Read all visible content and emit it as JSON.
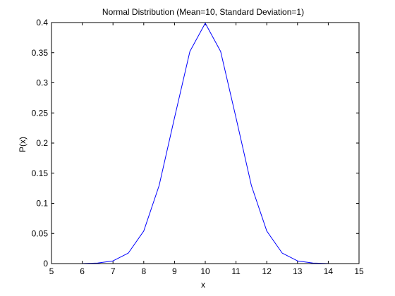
{
  "chart_data": {
    "type": "line",
    "title": "Normal Distribution (Mean=10, Standard Deviation=1)",
    "xlabel": "x",
    "ylabel": "P(x)",
    "xlim": [
      5,
      15
    ],
    "ylim": [
      0,
      0.4
    ],
    "xticks": [
      "5",
      "6",
      "7",
      "8",
      "9",
      "10",
      "11",
      "12",
      "13",
      "14",
      "15"
    ],
    "yticks": [
      "0",
      "0.05",
      "0.1",
      "0.15",
      "0.2",
      "0.25",
      "0.3",
      "0.35",
      "0.4"
    ],
    "grid": false,
    "series": [
      {
        "color": "#0000ff",
        "x": [
          5,
          5.5,
          6,
          6.5,
          7,
          7.5,
          8,
          8.5,
          9,
          9.5,
          10,
          10.5,
          11,
          11.5,
          12,
          12.5,
          13,
          13.5,
          14,
          14.5,
          15
        ],
        "y": [
          1.5e-06,
          1.6e-05,
          0.0001338,
          0.0008727,
          0.0044318,
          0.0175283,
          0.053991,
          0.1295176,
          0.2419707,
          0.3520653,
          0.3989423,
          0.3520653,
          0.2419707,
          0.1295176,
          0.053991,
          0.0175283,
          0.0044318,
          0.0008727,
          0.0001338,
          1.6e-05,
          1.5e-06
        ]
      }
    ]
  }
}
